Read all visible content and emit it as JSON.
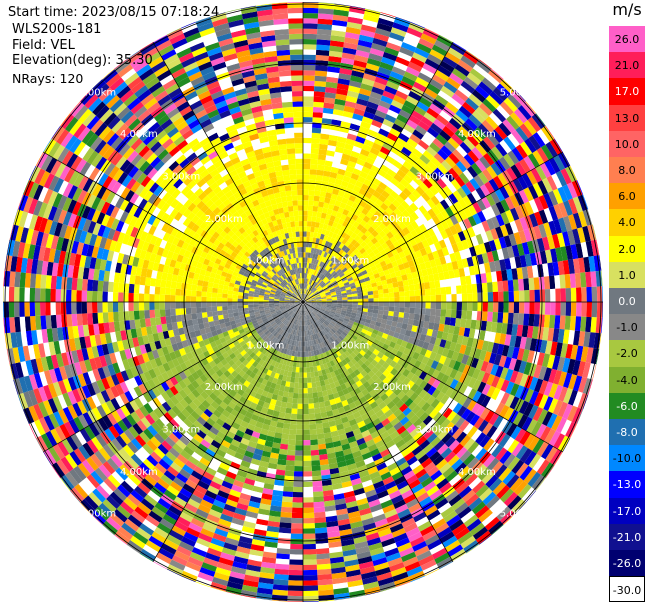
{
  "info": {
    "start_time": "Start time: 2023/08/15 07:18:24",
    "instrument": "WLS200s-181",
    "field": "Field: VEL",
    "elevation": "Elevation(deg): 35.30",
    "nrays": "NRays: 120"
  },
  "colorbar": {
    "unit": "m/s",
    "ticks": [
      "26.0",
      "21.0",
      "17.0",
      "13.0",
      "10.0",
      "8.0",
      "6.0",
      "4.0",
      "2.0",
      "1.0",
      "0.0",
      "-1.0",
      "-2.0",
      "-4.0",
      "-6.0",
      "-8.0",
      "-10.0",
      "-13.0",
      "-17.0",
      "-21.0",
      "-26.0",
      "-30.0"
    ],
    "colors": [
      "#ff5fc8",
      "#ff1e5a",
      "#ff0000",
      "#ff4040",
      "#ff6464",
      "#ff7f50",
      "#ffa000",
      "#ffd000",
      "#ffff00",
      "#d8e060",
      "#707880",
      "#888888",
      "#a8c840",
      "#80b030",
      "#228b22",
      "#1f6fb0",
      "#0088ff",
      "#0000ff",
      "#0000c0",
      "#101090",
      "#000070",
      "#000050"
    ]
  },
  "range_rings": {
    "labels": [
      "1.00km",
      "2.00km",
      "3.00km",
      "4.00km",
      "5.00km"
    ]
  },
  "rays": 120
}
